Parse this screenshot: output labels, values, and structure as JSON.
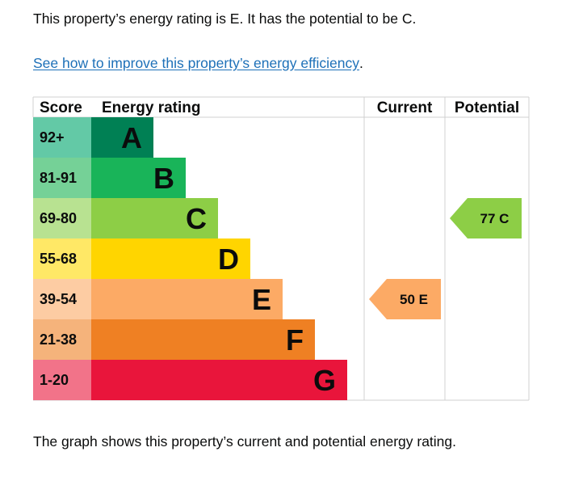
{
  "intro_text": "This property’s energy rating is E. It has the potential to be C.",
  "improve_link": "See how to improve this property’s energy efficiency",
  "improve_link_suffix": ".",
  "footer_text": "The graph shows this property’s current and potential energy rating.",
  "chart_data": {
    "type": "bar",
    "headers": {
      "score": "Score",
      "energy_rating": "Energy rating",
      "current": "Current",
      "potential": "Potential"
    },
    "bands": [
      {
        "letter": "A",
        "range": "92+",
        "color": "#008054",
        "score_color": "#63c9a6",
        "letter_color": "#0b0c0c"
      },
      {
        "letter": "B",
        "range": "81-91",
        "color": "#19b459",
        "score_color": "#75d197",
        "letter_color": "#0b0c0c"
      },
      {
        "letter": "C",
        "range": "69-80",
        "color": "#8dce46",
        "score_color": "#b8e291",
        "letter_color": "#0b0c0c"
      },
      {
        "letter": "D",
        "range": "55-68",
        "color": "#ffd500",
        "score_color": "#ffe866",
        "letter_color": "#0b0c0c"
      },
      {
        "letter": "E",
        "range": "39-54",
        "color": "#fcaa65",
        "score_color": "#fdcca3",
        "letter_color": "#0b0c0c"
      },
      {
        "letter": "F",
        "range": "21-38",
        "color": "#ef8023",
        "score_color": "#f5b37b",
        "letter_color": "#0b0c0c"
      },
      {
        "letter": "G",
        "range": "1-20",
        "color": "#e9153b",
        "score_color": "#f27389",
        "letter_color": "#0b0c0c"
      }
    ],
    "current": {
      "value": 50,
      "band": "E",
      "label": "50 E",
      "color": "#fcaa65"
    },
    "potential": {
      "value": 77,
      "band": "C",
      "label": "77 C",
      "color": "#8dce46"
    }
  }
}
